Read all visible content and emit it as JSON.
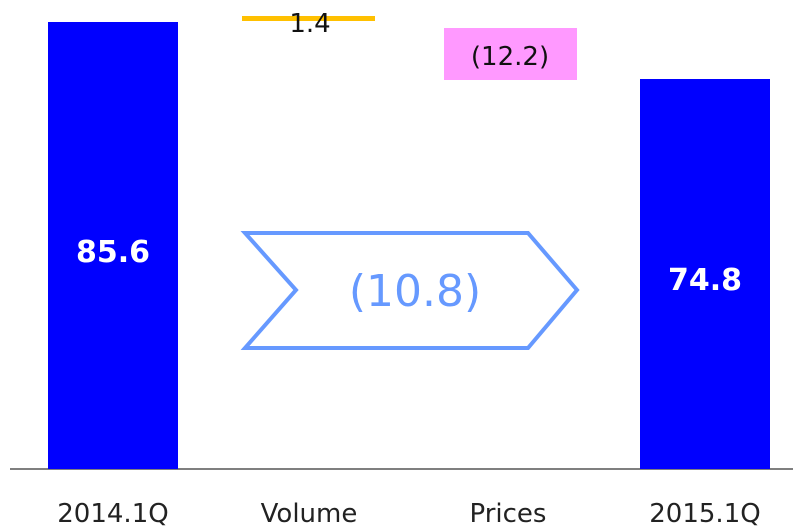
{
  "chart_data": {
    "type": "bar",
    "subtype": "waterfall",
    "categories": [
      "2014.1Q",
      "Volume",
      "Prices",
      "2015.1Q"
    ],
    "values": [
      85.6,
      1.4,
      -12.2,
      74.8
    ],
    "value_labels": [
      "85.6",
      "1.4",
      "(12.2)",
      "74.8"
    ],
    "net_change": -10.8,
    "net_change_label": "(10.8)",
    "colors": {
      "total": "#0000ff",
      "volume": "#ffc000",
      "prices_label_bg": "#ff99ff",
      "arrow": "#6699ff",
      "axis": "#7f7f7f"
    },
    "title": "",
    "xlabel": "",
    "ylabel": ""
  }
}
